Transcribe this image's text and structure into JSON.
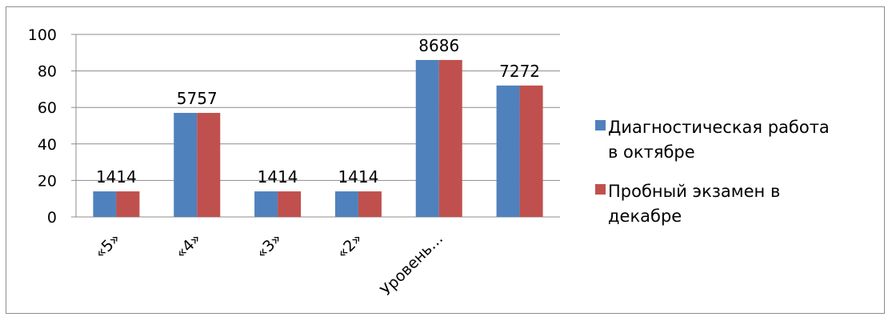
{
  "chart_data": {
    "type": "bar",
    "categories": [
      "«5»",
      "«4»",
      "«3»",
      "«2»",
      "Уровень…",
      ""
    ],
    "series": [
      {
        "name": "Диагностическая работа в октябре",
        "values": [
          14,
          57,
          14,
          14,
          86,
          72
        ],
        "color": "#4f81bd"
      },
      {
        "name": "Пробный  экзамен в декабре",
        "values": [
          14,
          57,
          14,
          14,
          86,
          72
        ],
        "color": "#c0504d"
      }
    ],
    "data_labels": [
      "1414",
      "5757",
      "1414",
      "1414",
      "8686",
      "7272"
    ],
    "ylim": [
      0,
      100
    ],
    "yticks": [
      "0",
      "20",
      "40",
      "60",
      "80",
      "100"
    ],
    "grid": true,
    "legend_position": "right",
    "legend_lines": [
      [
        "Диагностическая работа",
        "в октябре"
      ],
      [
        "Пробный  экзамен в",
        "декабре"
      ]
    ]
  }
}
